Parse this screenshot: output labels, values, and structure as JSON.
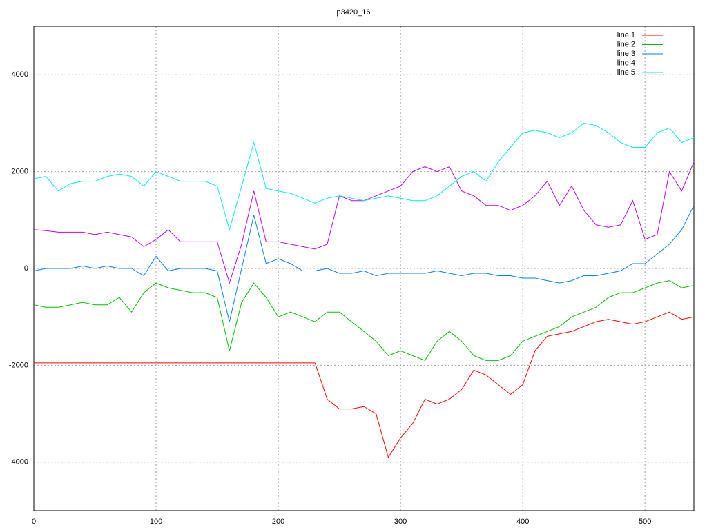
{
  "chart_data": {
    "type": "line",
    "title": "p3420_16",
    "x": [
      0,
      10,
      20,
      30,
      40,
      50,
      60,
      70,
      80,
      90,
      100,
      110,
      120,
      130,
      140,
      150,
      160,
      170,
      180,
      190,
      200,
      210,
      220,
      230,
      240,
      250,
      260,
      270,
      280,
      290,
      300,
      310,
      320,
      330,
      340,
      350,
      360,
      370,
      380,
      390,
      400,
      410,
      420,
      430,
      440,
      450,
      460,
      470,
      480,
      490,
      500,
      510,
      520,
      530,
      540
    ],
    "series": [
      {
        "name": "line 1",
        "color": "#ff0000",
        "values": [
          -1950,
          -1950,
          -1950,
          -1950,
          -1950,
          -1950,
          -1950,
          -1950,
          -1950,
          -1950,
          -1950,
          -1950,
          -1950,
          -1950,
          -1950,
          -1950,
          -1950,
          -1950,
          -1950,
          -1950,
          -1950,
          -1950,
          -1950,
          -1950,
          -2700,
          -2900,
          -2900,
          -2850,
          -3000,
          -3900,
          -3500,
          -3200,
          -2700,
          -2800,
          -2700,
          -2500,
          -2100,
          -2200,
          -2400,
          -2600,
          -2400,
          -1700,
          -1400,
          -1350,
          -1300,
          -1200,
          -1100,
          -1050,
          -1100,
          -1150,
          -1100,
          -1000,
          -900,
          -1050,
          -1000
        ]
      },
      {
        "name": "line 2",
        "color": "#00c000",
        "values": [
          -750,
          -800,
          -800,
          -750,
          -700,
          -750,
          -750,
          -600,
          -900,
          -500,
          -300,
          -400,
          -450,
          -500,
          -500,
          -600,
          -1700,
          -700,
          -300,
          -600,
          -1000,
          -900,
          -1000,
          -1100,
          -900,
          -900,
          -1100,
          -1300,
          -1500,
          -1800,
          -1700,
          -1800,
          -1900,
          -1500,
          -1300,
          -1500,
          -1800,
          -1900,
          -1900,
          -1800,
          -1500,
          -1400,
          -1300,
          -1200,
          -1000,
          -900,
          -800,
          -600,
          -500,
          -500,
          -400,
          -300,
          -250,
          -400,
          -350
        ]
      },
      {
        "name": "line 3",
        "color": "#0080ff",
        "values": [
          -50,
          0,
          0,
          0,
          50,
          0,
          50,
          0,
          0,
          -150,
          250,
          -50,
          0,
          0,
          0,
          -50,
          -1100,
          0,
          1100,
          100,
          200,
          100,
          -50,
          -50,
          0,
          -100,
          -100,
          -50,
          -150,
          -100,
          -100,
          -100,
          -100,
          -50,
          -100,
          -150,
          -100,
          -100,
          -150,
          -150,
          -200,
          -200,
          -250,
          -300,
          -250,
          -150,
          -150,
          -100,
          -50,
          100,
          100,
          300,
          500,
          800,
          1300
        ]
      },
      {
        "name": "line 4",
        "color": "#c000ff",
        "values": [
          800,
          780,
          750,
          750,
          750,
          700,
          750,
          700,
          650,
          450,
          600,
          800,
          550,
          550,
          550,
          550,
          -300,
          500,
          1600,
          550,
          550,
          500,
          450,
          400,
          500,
          1500,
          1400,
          1400,
          1500,
          1600,
          1700,
          2000,
          2100,
          2000,
          2100,
          1600,
          1500,
          1300,
          1300,
          1200,
          1300,
          1500,
          1800,
          1300,
          1700,
          1200,
          900,
          850,
          900,
          1400,
          600,
          700,
          2000,
          1600,
          2200
        ]
      },
      {
        "name": "line 5",
        "color": "#00eeee",
        "values": [
          1850,
          1900,
          1600,
          1750,
          1800,
          1800,
          1900,
          1950,
          1900,
          1700,
          2000,
          1900,
          1800,
          1800,
          1800,
          1700,
          800,
          1700,
          2600,
          1650,
          1600,
          1550,
          1450,
          1350,
          1450,
          1500,
          1450,
          1400,
          1450,
          1500,
          1450,
          1400,
          1400,
          1500,
          1700,
          1900,
          2000,
          1800,
          2200,
          2500,
          2800,
          2850,
          2800,
          2700,
          2800,
          3000,
          2950,
          2800,
          2600,
          2500,
          2500,
          2800,
          2900,
          2600,
          2700
        ]
      }
    ],
    "xlim": [
      0,
      540
    ],
    "ylim": [
      -5000,
      5000
    ],
    "xticks": [
      0,
      100,
      200,
      300,
      400,
      500
    ],
    "yticks": [
      -4000,
      -2000,
      0,
      2000,
      4000
    ],
    "grid": true,
    "legend": "top-right"
  }
}
